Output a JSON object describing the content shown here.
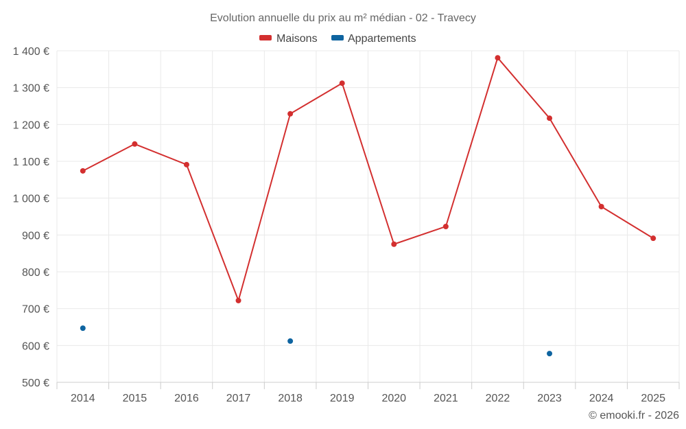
{
  "chart_data": {
    "type": "line",
    "title": "Evolution annuelle du prix au m² médian - 02 - Travecy",
    "xlabel": "",
    "ylabel": "",
    "categories": [
      "2014",
      "2015",
      "2016",
      "2017",
      "2018",
      "2019",
      "2020",
      "2021",
      "2022",
      "2023",
      "2024",
      "2025"
    ],
    "series": [
      {
        "name": "Maisons",
        "color": "#d32f2f",
        "values": [
          1074,
          1147,
          1091,
          722,
          1229,
          1312,
          875,
          923,
          1381,
          1217,
          977,
          891
        ]
      },
      {
        "name": "Appartements",
        "color": "#0e64a0",
        "values": [
          647,
          null,
          null,
          null,
          612,
          null,
          null,
          null,
          null,
          578,
          null,
          null
        ]
      }
    ],
    "ylim": [
      500,
      1400
    ],
    "yticks": [
      500,
      600,
      700,
      800,
      900,
      1000,
      1100,
      1200,
      1300,
      1400
    ],
    "ytick_labels": [
      "500 €",
      "600 €",
      "700 €",
      "800 €",
      "900 €",
      "1 000 €",
      "1 100 €",
      "1 200 €",
      "1 300 €",
      "1 400 €"
    ],
    "grid": true,
    "legend": "top-center"
  },
  "legend": {
    "items": [
      {
        "label": "Maisons",
        "color": "#d32f2f"
      },
      {
        "label": "Appartements",
        "color": "#0e64a0"
      }
    ]
  },
  "footer": {
    "credit": "© emooki.fr - 2026"
  }
}
